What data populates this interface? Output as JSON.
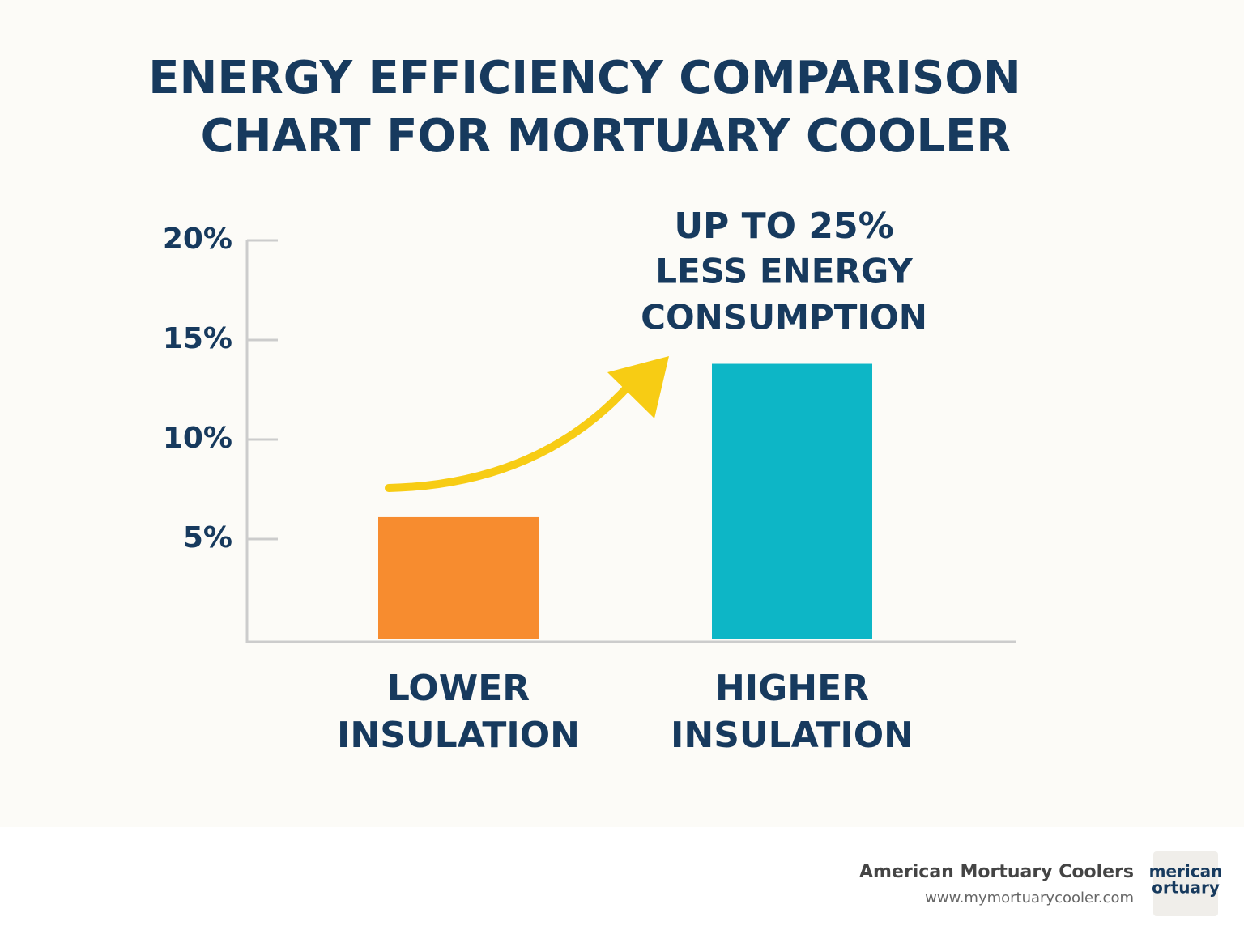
{
  "chart_data": {
    "type": "bar",
    "title": [
      "ENERGY EFFICIENCY COMPARISON",
      "CHART FOR MORTUARY COOLER"
    ],
    "annotation": [
      "UP TO 25%",
      "LESS ENERGY",
      "CONSUMPTION"
    ],
    "categories": [
      "LOWER INSULATION",
      "HIGHER INSULATION"
    ],
    "values": [
      6.1,
      13.8
    ],
    "colors": [
      "#f78c2f",
      "#0db6c6"
    ],
    "ylim": [
      0,
      20
    ],
    "yticks": [
      {
        "value": 5,
        "label": "5%"
      },
      {
        "value": 10,
        "label": "10%"
      },
      {
        "value": 15,
        "label": "15%"
      },
      {
        "value": 20,
        "label": "20%"
      }
    ],
    "grid": false
  },
  "footer": {
    "brand": "American Mortuary Coolers",
    "url": "www.mymortuarycooler.com",
    "logo": [
      "merican",
      "ortuary"
    ]
  }
}
